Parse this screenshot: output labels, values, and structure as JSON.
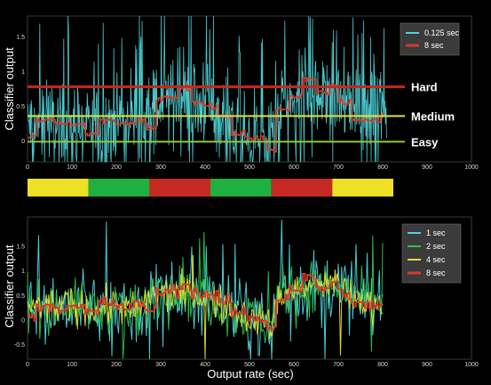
{
  "colors": {
    "bg": "#000000",
    "line_0125": "#4fd4d8",
    "line_8": "#d63a2a",
    "line_1": "#4fd4d8",
    "line_2": "#2ec24a",
    "line_4": "#e8e030",
    "line_8_bottom": "#d63a2a",
    "hard": "#c8281c",
    "medium": "#e2e23a",
    "easy": "#8ec83c",
    "bar_yellow": "#eee024",
    "bar_green": "#1fb040",
    "bar_red": "#c42a22"
  },
  "chart_data": [
    {
      "type": "line",
      "ylabel": "Classifier output",
      "xlim": [
        0,
        1000
      ],
      "ylim": [
        -0.3,
        1.8
      ],
      "x_ticks": [
        "0",
        "100",
        "200",
        "300",
        "400",
        "500",
        "600",
        "700",
        "800",
        "900",
        "1000"
      ],
      "y_ticks": [
        "0",
        "0.5",
        "1",
        "1.5"
      ],
      "legend": {
        "position": "top-right",
        "entries": [
          "0.125 sec",
          "8 sec"
        ]
      },
      "thresholds": [
        {
          "label": "Hard",
          "value": 0.78
        },
        {
          "label": "Medium",
          "value": 0.36
        },
        {
          "label": "Easy",
          "value": -0.01
        }
      ],
      "series": [
        {
          "name": "0.125 sec",
          "style": "noisy",
          "x": [
            0,
            100,
            150,
            200,
            250,
            280,
            350,
            410,
            450,
            500,
            550,
            570,
            650,
            700,
            750,
            800
          ],
          "values": [
            0.25,
            0.25,
            0.2,
            0.3,
            0.2,
            0.55,
            0.6,
            0.5,
            0.25,
            0.05,
            -0.1,
            0.55,
            0.7,
            0.7,
            0.45,
            0.45
          ]
        },
        {
          "name": "8 sec",
          "style": "stepped",
          "x": [
            0,
            20,
            60,
            100,
            130,
            160,
            200,
            240,
            270,
            290,
            310,
            340,
            370,
            400,
            430,
            460,
            490,
            520,
            540,
            560,
            590,
            620,
            650,
            680,
            700,
            730,
            760,
            800
          ],
          "values": [
            0.05,
            0.3,
            0.25,
            0.25,
            0.1,
            0.3,
            0.25,
            0.3,
            0.2,
            0.6,
            0.65,
            0.75,
            0.55,
            0.5,
            0.35,
            0.1,
            0.05,
            0.05,
            -0.15,
            0.45,
            0.65,
            0.9,
            0.7,
            0.8,
            0.55,
            0.3,
            0.3,
            0.4
          ]
        }
      ]
    },
    {
      "type": "line",
      "ylabel": "Classifier output",
      "xlabel": "Output rate (sec)",
      "xlim": [
        0,
        1000
      ],
      "ylim": [
        -0.8,
        2.1
      ],
      "x_ticks": [
        "0",
        "100",
        "200",
        "300",
        "400",
        "500",
        "600",
        "700",
        "800",
        "900",
        "1000"
      ],
      "y_ticks": [
        "-0.5",
        "0",
        "0.5",
        "1",
        "1.5"
      ],
      "legend": {
        "position": "top-right",
        "entries": [
          "1 sec",
          "2 sec",
          "4 sec",
          "8 sec"
        ]
      },
      "series": [
        {
          "name": "1 sec",
          "x": [
            0,
            100,
            150,
            200,
            250,
            280,
            350,
            410,
            450,
            500,
            550,
            570,
            650,
            700,
            750,
            800
          ],
          "values": [
            0.25,
            0.3,
            0.2,
            0.3,
            0.15,
            0.55,
            0.55,
            0.45,
            0.25,
            0.05,
            -0.1,
            0.55,
            0.7,
            0.7,
            0.35,
            0.35
          ]
        },
        {
          "name": "2 sec",
          "x": [
            0,
            100,
            150,
            200,
            250,
            280,
            350,
            410,
            450,
            500,
            550,
            570,
            650,
            700,
            750,
            800
          ],
          "values": [
            0.25,
            0.3,
            0.2,
            0.3,
            0.15,
            0.55,
            0.55,
            0.45,
            0.25,
            0.05,
            -0.1,
            0.55,
            0.7,
            0.7,
            0.35,
            0.35
          ]
        },
        {
          "name": "4 sec",
          "x": [
            0,
            100,
            150,
            200,
            250,
            280,
            350,
            410,
            450,
            500,
            550,
            570,
            650,
            700,
            750,
            800
          ],
          "values": [
            0.25,
            0.3,
            0.2,
            0.3,
            0.15,
            0.5,
            0.55,
            0.45,
            0.25,
            0.05,
            -0.1,
            0.55,
            0.7,
            0.7,
            0.35,
            0.35
          ]
        },
        {
          "name": "8 sec",
          "x": [
            0,
            20,
            60,
            100,
            130,
            160,
            200,
            240,
            270,
            290,
            310,
            340,
            370,
            400,
            430,
            460,
            490,
            520,
            540,
            560,
            590,
            620,
            650,
            680,
            700,
            730,
            760,
            800
          ],
          "values": [
            0.05,
            0.3,
            0.25,
            0.25,
            0.15,
            0.35,
            0.25,
            0.3,
            0.2,
            0.55,
            0.6,
            0.7,
            0.55,
            0.5,
            0.35,
            0.15,
            0.05,
            0.0,
            -0.15,
            0.45,
            0.65,
            0.85,
            0.65,
            0.75,
            0.55,
            0.3,
            0.3,
            0.35
          ]
        }
      ]
    }
  ],
  "difficulty_bar": {
    "segments": [
      {
        "level": "Easy",
        "start": 0,
        "end": 150
      },
      {
        "level": "Medium",
        "start": 150,
        "end": 300
      },
      {
        "level": "Hard",
        "start": 300,
        "end": 450
      },
      {
        "level": "Medium",
        "start": 450,
        "end": 600
      },
      {
        "level": "Hard",
        "start": 600,
        "end": 750
      },
      {
        "level": "Easy",
        "start": 750,
        "end": 900
      }
    ]
  }
}
